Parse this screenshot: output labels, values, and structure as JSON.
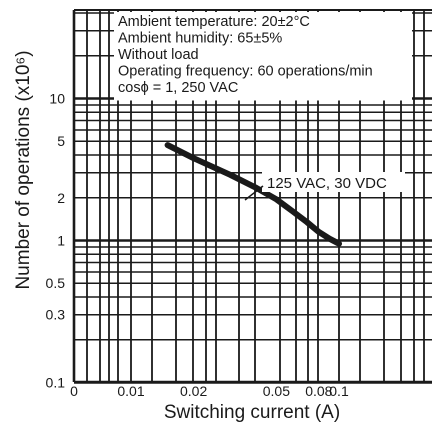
{
  "chart_data": {
    "type": "line",
    "xlabel": "Switching current (A)",
    "ylabel": "Number of operations  (x10⁶)",
    "x_tick_labels": [
      "0",
      "0.01",
      "0.02",
      "0.05",
      "0.08",
      "0.1"
    ],
    "x_tick_values": [
      0,
      0.01,
      0.02,
      0.05,
      0.08,
      0.1
    ],
    "xlim": [
      0,
      0.13
    ],
    "y_scale": "log",
    "y_tick_labels": [
      "10",
      "5",
      "2",
      "1",
      "0.5",
      "0.3",
      "0.1"
    ],
    "y_tick_values": [
      10,
      5,
      2,
      1,
      0.5,
      0.3,
      0.1
    ],
    "ylim": [
      0.1,
      100
    ],
    "grid": true,
    "conditions": [
      "Ambient temperature: 20±2°C",
      "Ambient humidity: 65±5%",
      "Without load",
      "Operating frequency: 60 operations/min",
      "cosϕ = 1, 250 VAC"
    ],
    "series": [
      {
        "name": "125 VAC, 30 VDC",
        "x": [
          0.015,
          0.02,
          0.03,
          0.04,
          0.05,
          0.06,
          0.07,
          0.08,
          0.09,
          0.1
        ],
        "y": [
          4.7,
          3.8,
          2.9,
          2.35,
          1.95,
          1.6,
          1.35,
          1.15,
          1.03,
          0.95
        ]
      }
    ],
    "colors": {
      "line": "#1a1a1a",
      "grid": "#1a1a1a",
      "background": "#ffffff"
    }
  }
}
